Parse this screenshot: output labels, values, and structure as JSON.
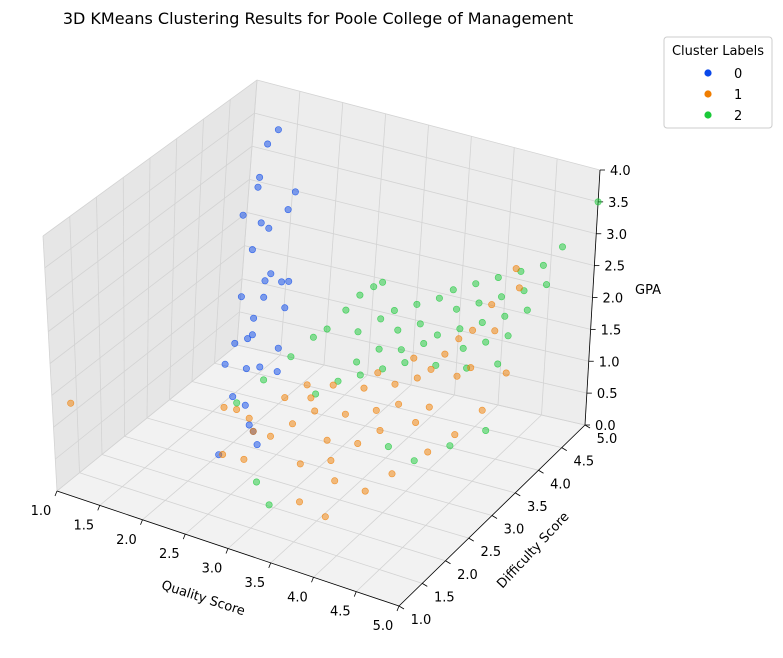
{
  "chart_data": {
    "type": "scatter",
    "projection": "3d",
    "title": "3D KMeans Clustering Results for Poole College of Management",
    "xlabel": "Quality Score",
    "ylabel": "Difficulty Score",
    "zlabel": "GPA",
    "xlim": [
      1.0,
      5.0
    ],
    "ylim": [
      1.0,
      5.0
    ],
    "zlim": [
      0.0,
      4.0
    ],
    "xticks": [
      "1.0",
      "1.5",
      "2.0",
      "2.5",
      "3.0",
      "3.5",
      "4.0",
      "4.5",
      "5.0"
    ],
    "yticks": [
      "1.0",
      "1.5",
      "2.0",
      "2.5",
      "3.0",
      "3.5",
      "4.0",
      "4.5",
      "5.0"
    ],
    "zticks": [
      "0.0",
      "0.5",
      "1.0",
      "1.5",
      "2.0",
      "2.5",
      "3.0",
      "3.5",
      "4.0"
    ],
    "grid": true,
    "legend": {
      "title": "Cluster Labels",
      "placement": "upper-right-outside"
    },
    "series": [
      {
        "name": "0",
        "color": "#0a48ea",
        "points": [
          [
            1.4,
            4.8,
            3.5
          ],
          [
            1.4,
            4.6,
            3.4
          ],
          [
            1.5,
            4.3,
            3.1
          ],
          [
            1.6,
            4.1,
            3.1
          ],
          [
            1.5,
            4.0,
            2.7
          ],
          [
            1.6,
            4.2,
            2.5
          ],
          [
            1.8,
            4.0,
            2.6
          ],
          [
            1.9,
            4.2,
            2.8
          ],
          [
            1.9,
            3.5,
            2.6
          ],
          [
            2.0,
            3.6,
            2.1
          ],
          [
            1.9,
            3.9,
            2.0
          ],
          [
            2.0,
            4.1,
            1.8
          ],
          [
            1.9,
            3.3,
            2.0
          ],
          [
            2.1,
            3.4,
            2.0
          ],
          [
            2.0,
            3.0,
            1.5
          ],
          [
            2.1,
            3.2,
            1.8
          ],
          [
            2.0,
            2.8,
            1.3
          ],
          [
            2.2,
            3.8,
            3.4
          ],
          [
            2.2,
            3.0,
            1.7
          ],
          [
            2.3,
            3.4,
            2.3
          ],
          [
            2.2,
            2.9,
            1.7
          ],
          [
            2.3,
            2.7,
            1.4
          ],
          [
            2.2,
            2.6,
            1.0
          ],
          [
            2.4,
            3.3,
            2.0
          ],
          [
            2.4,
            2.8,
            1.4
          ],
          [
            2.5,
            3.0,
            1.6
          ],
          [
            2.4,
            2.5,
            1.0
          ],
          [
            2.6,
            2.8,
            1.4
          ],
          [
            2.5,
            2.4,
            0.8
          ],
          [
            2.6,
            2.3,
            0.8
          ],
          [
            2.7,
            2.2,
            0.7
          ],
          [
            2.2,
            2.3,
            0.3
          ]
        ]
      },
      {
        "name": "1",
        "color": "#f07d00",
        "points": [
          [
            1.1,
            1.2,
            1.3
          ],
          [
            2.1,
            2.6,
            0.8
          ],
          [
            2.3,
            2.5,
            0.9
          ],
          [
            2.3,
            2.2,
            0.4
          ],
          [
            2.5,
            2.4,
            0.9
          ],
          [
            2.6,
            2.3,
            0.8
          ],
          [
            2.6,
            2.1,
            0.5
          ],
          [
            2.8,
            2.3,
            0.8
          ],
          [
            2.8,
            2.6,
            1.2
          ],
          [
            3.0,
            2.7,
            1.4
          ],
          [
            3.1,
            2.6,
            1.3
          ],
          [
            3.0,
            2.4,
            1.0
          ],
          [
            3.2,
            2.5,
            1.2
          ],
          [
            3.3,
            2.7,
            1.5
          ],
          [
            3.2,
            2.2,
            0.6
          ],
          [
            3.4,
            2.4,
            0.9
          ],
          [
            3.5,
            2.6,
            1.2
          ],
          [
            3.6,
            2.8,
            1.5
          ],
          [
            3.5,
            2.3,
            0.7
          ],
          [
            3.6,
            2.2,
            0.5
          ],
          [
            3.7,
            2.5,
            0.9
          ],
          [
            3.8,
            2.7,
            1.3
          ],
          [
            3.7,
            2.9,
            1.7
          ],
          [
            3.9,
            2.6,
            1.1
          ],
          [
            3.9,
            2.9,
            1.6
          ],
          [
            4.0,
            3.1,
            1.9
          ],
          [
            4.0,
            2.8,
            1.4
          ],
          [
            4.1,
            3.0,
            1.7
          ],
          [
            4.2,
            3.1,
            1.8
          ],
          [
            4.2,
            2.8,
            1.2
          ],
          [
            4.3,
            3.2,
            2.0
          ],
          [
            4.4,
            3.3,
            2.2
          ],
          [
            4.3,
            2.9,
            1.4
          ],
          [
            4.5,
            3.4,
            2.3
          ],
          [
            4.5,
            3.1,
            1.8
          ],
          [
            4.6,
            3.6,
            2.6
          ],
          [
            4.6,
            3.2,
            1.9
          ],
          [
            4.7,
            3.5,
            2.3
          ],
          [
            4.8,
            3.8,
            2.8
          ],
          [
            4.7,
            3.9,
            3.0
          ],
          [
            3.3,
            2.0,
            0.2
          ],
          [
            3.6,
            2.0,
            0.1
          ],
          [
            3.9,
            2.3,
            0.4
          ],
          [
            4.1,
            2.5,
            0.6
          ],
          [
            4.4,
            2.7,
            0.9
          ],
          [
            4.6,
            2.9,
            1.1
          ],
          [
            4.8,
            3.1,
            1.4
          ],
          [
            4.9,
            3.4,
            1.8
          ]
        ]
      },
      {
        "name": "2",
        "color": "#1ac938",
        "points": [
          [
            2.3,
            2.5,
            1.0
          ],
          [
            2.5,
            2.7,
            1.3
          ],
          [
            2.7,
            2.9,
            1.6
          ],
          [
            2.9,
            3.0,
            1.9
          ],
          [
            3.0,
            3.1,
            2.0
          ],
          [
            3.1,
            3.3,
            2.2
          ],
          [
            3.2,
            3.4,
            2.4
          ],
          [
            3.3,
            3.5,
            2.5
          ],
          [
            3.4,
            3.5,
            2.6
          ],
          [
            3.3,
            3.2,
            2.0
          ],
          [
            3.4,
            3.0,
            1.7
          ],
          [
            3.5,
            3.3,
            2.2
          ],
          [
            3.6,
            3.4,
            2.3
          ],
          [
            3.6,
            3.1,
            1.9
          ],
          [
            3.7,
            3.3,
            2.1
          ],
          [
            3.8,
            3.5,
            2.4
          ],
          [
            3.8,
            3.2,
            1.9
          ],
          [
            3.9,
            3.4,
            2.2
          ],
          [
            4.0,
            3.6,
            2.5
          ],
          [
            4.0,
            3.3,
            2.0
          ],
          [
            4.1,
            3.7,
            2.6
          ],
          [
            4.1,
            3.4,
            2.1
          ],
          [
            4.2,
            3.6,
            2.4
          ],
          [
            4.3,
            3.8,
            2.7
          ],
          [
            4.3,
            3.5,
            2.2
          ],
          [
            4.4,
            3.7,
            2.5
          ],
          [
            4.4,
            3.4,
            2.0
          ],
          [
            4.5,
            3.9,
            2.8
          ],
          [
            4.5,
            3.6,
            2.3
          ],
          [
            4.6,
            3.8,
            2.6
          ],
          [
            4.6,
            3.5,
            2.1
          ],
          [
            4.7,
            4.0,
            2.9
          ],
          [
            4.7,
            3.7,
            2.4
          ],
          [
            4.8,
            3.9,
            2.7
          ],
          [
            4.8,
            3.6,
            2.2
          ],
          [
            4.9,
            4.1,
            3.0
          ],
          [
            4.9,
            3.8,
            2.5
          ],
          [
            5.0,
            4.3,
            3.2
          ],
          [
            5.0,
            4.0,
            2.8
          ],
          [
            3.1,
            2.7,
            1.3
          ],
          [
            3.3,
            2.8,
            1.5
          ],
          [
            3.5,
            2.9,
            1.6
          ],
          [
            3.7,
            3.0,
            1.7
          ],
          [
            3.9,
            3.1,
            1.8
          ],
          [
            4.2,
            3.2,
            1.8
          ],
          [
            4.5,
            3.3,
            1.8
          ],
          [
            4.8,
            3.4,
            1.9
          ],
          [
            4.0,
            2.6,
            0.9
          ],
          [
            4.3,
            2.6,
            0.8
          ],
          [
            4.6,
            2.8,
            1.0
          ],
          [
            4.9,
            3.0,
            1.2
          ],
          [
            3.0,
            1.9,
            0.1
          ],
          [
            2.8,
            2.0,
            0.3
          ],
          [
            5.0,
            5.0,
            3.5
          ]
        ]
      }
    ]
  }
}
